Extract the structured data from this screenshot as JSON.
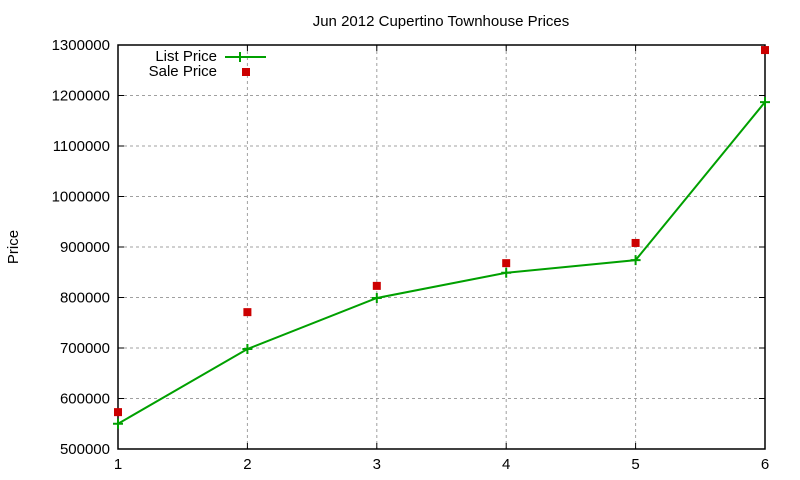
{
  "chart_data": {
    "type": "line",
    "title": "Jun 2012 Cupertino Townhouse Prices",
    "xlabel": "",
    "ylabel": "Price",
    "x": [
      1,
      2,
      3,
      4,
      5,
      6
    ],
    "xlim": [
      1,
      6
    ],
    "ylim": [
      500000,
      1300000
    ],
    "xticks": [
      "1",
      "2",
      "3",
      "4",
      "5",
      "6"
    ],
    "yticks": [
      "500000",
      "600000",
      "700000",
      "800000",
      "900000",
      "1000000",
      "1100000",
      "1200000",
      "1300000"
    ],
    "grid": true,
    "legend_position": "top-left",
    "series": [
      {
        "name": "List Price",
        "style": "line+cross",
        "color": "#00a000",
        "values": [
          550000,
          698000,
          799000,
          849000,
          874000,
          1187000
        ]
      },
      {
        "name": "Sale Price",
        "style": "square-points",
        "color": "#cc0000",
        "values": [
          573000,
          771000,
          823000,
          868000,
          908000,
          1290000
        ]
      }
    ]
  }
}
